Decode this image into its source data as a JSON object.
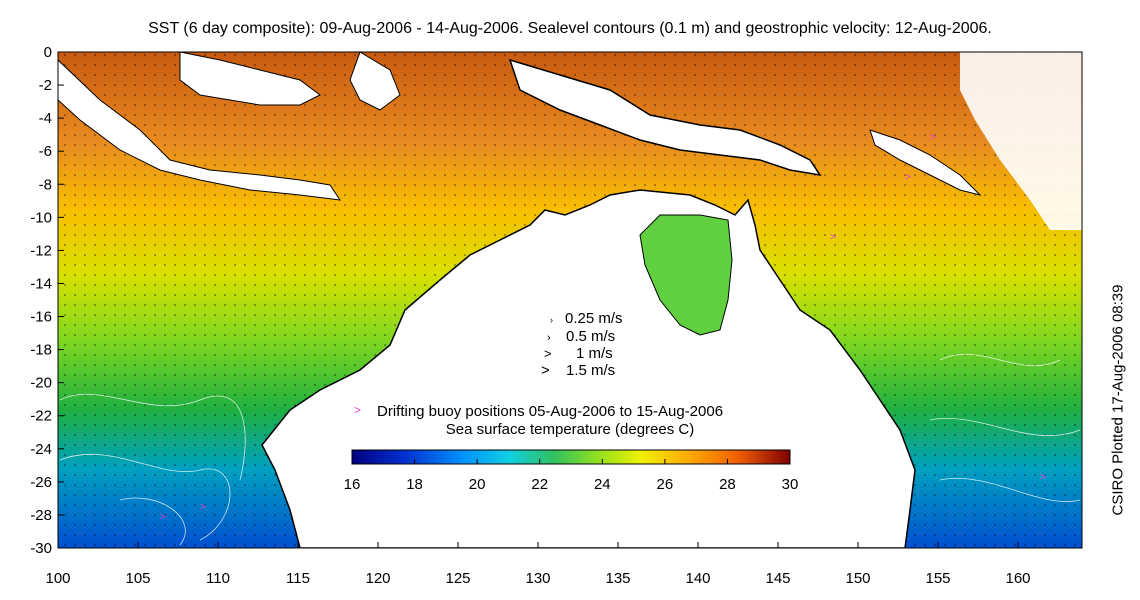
{
  "title": "SST (6 day composite): 09-Aug-2006 - 14-Aug-2006. Sealevel contours (0.1 m) and geostrophic velocity: 12-Aug-2006.",
  "side_label": "CSIRO Plotted 17-Aug-2006 08:39",
  "axes": {
    "x_ticks": [
      "100",
      "105",
      "110",
      "115",
      "120",
      "125",
      "130",
      "135",
      "140",
      "145",
      "150",
      "155",
      "160"
    ],
    "y_ticks": [
      "0",
      "-2",
      "-4",
      "-6",
      "-8",
      "-10",
      "-12",
      "-14",
      "-16",
      "-18",
      "-20",
      "-22",
      "-24",
      "-26",
      "-28",
      "-30"
    ],
    "lon_range": [
      100,
      164
    ],
    "lat_range": [
      -30,
      0
    ]
  },
  "velocity_legend": [
    "0.25 m/s",
    "0.5 m/s",
    "1 m/s",
    "1.5 m/s"
  ],
  "buoy_legend": {
    "symbol": ">",
    "text": "Drifting buoy positions 05-Aug-2006 to 15-Aug-2006",
    "color": "#e040e0"
  },
  "colorbar": {
    "title": "Sea surface temperature (degrees C)",
    "ticks": [
      "16",
      "18",
      "20",
      "22",
      "24",
      "26",
      "28",
      "30"
    ],
    "min": 16,
    "max": 30,
    "colors": [
      "#00007f",
      "#0020c0",
      "#0070ff",
      "#00c0ff",
      "#20e0c0",
      "#40d040",
      "#a0e020",
      "#f0f000",
      "#ffc000",
      "#ff8000",
      "#d04000",
      "#800000"
    ]
  },
  "map": {
    "ocean_warm": "#e07820",
    "ocean_mid": "#f0c000",
    "ocean_green": "#40c040",
    "ocean_cool": "#0080e0",
    "land": "#ffffff"
  }
}
